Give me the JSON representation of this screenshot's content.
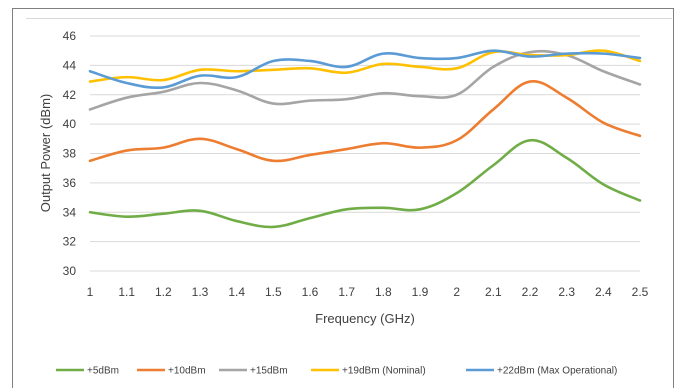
{
  "chart_data": {
    "type": "line",
    "title": "",
    "xlabel": "Frequency (GHz)",
    "ylabel": "Output Power (dBm)",
    "xlim": [
      1,
      2.5
    ],
    "ylim": [
      30,
      46
    ],
    "x_ticks": [
      "1",
      "1.1",
      "1.2",
      "1.3",
      "1.4",
      "1.5",
      "1.6",
      "1.7",
      "1.8",
      "1.9",
      "2",
      "2.1",
      "2.2",
      "2.3",
      "2.4",
      "2.5"
    ],
    "y_ticks": [
      "30",
      "32",
      "34",
      "36",
      "38",
      "40",
      "42",
      "44",
      "46"
    ],
    "grid": "horizontal",
    "legend_position": "bottom",
    "x": [
      1,
      1.1,
      1.2,
      1.3,
      1.4,
      1.5,
      1.6,
      1.7,
      1.8,
      1.9,
      2,
      2.1,
      2.2,
      2.3,
      2.4,
      2.5
    ],
    "series": [
      {
        "name": "+5dBm",
        "color": "#70ad47",
        "values": [
          34.0,
          33.7,
          33.9,
          34.1,
          33.4,
          33.0,
          33.6,
          34.2,
          34.3,
          34.2,
          35.3,
          37.2,
          38.9,
          37.7,
          35.9,
          34.8
        ]
      },
      {
        "name": "+10dBm",
        "color": "#ed7d31",
        "values": [
          37.5,
          38.2,
          38.4,
          39.0,
          38.3,
          37.5,
          37.9,
          38.3,
          38.7,
          38.4,
          38.9,
          41.0,
          42.9,
          41.8,
          40.1,
          39.2
        ]
      },
      {
        "name": "+15dBm",
        "color": "#a5a5a5",
        "values": [
          41.0,
          41.8,
          42.2,
          42.8,
          42.3,
          41.4,
          41.6,
          41.7,
          42.1,
          41.9,
          42.0,
          43.9,
          44.9,
          44.7,
          43.6,
          42.7
        ]
      },
      {
        "name": "+19dBm (Nominal)",
        "color": "#ffc000",
        "values": [
          42.9,
          43.2,
          43.0,
          43.7,
          43.6,
          43.7,
          43.8,
          43.5,
          44.1,
          43.9,
          43.8,
          44.9,
          44.7,
          44.7,
          45.0,
          44.3
        ]
      },
      {
        "name": "+22dBm (Max Operational)",
        "color": "#5b9bd5",
        "values": [
          43.6,
          42.8,
          42.5,
          43.3,
          43.2,
          44.3,
          44.3,
          43.9,
          44.8,
          44.5,
          44.5,
          45.0,
          44.6,
          44.8,
          44.8,
          44.5
        ]
      }
    ]
  }
}
